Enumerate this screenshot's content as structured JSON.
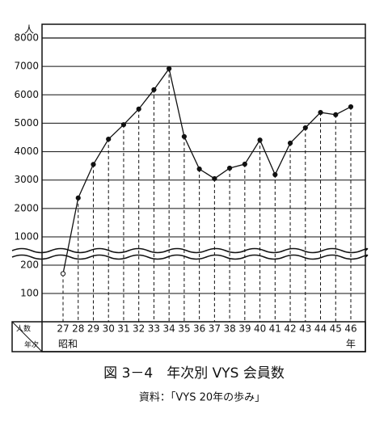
{
  "chart_data": {
    "type": "line",
    "title": "図 3－4　年次別 VYS 会員数",
    "source": "資料：「VYS 20年の歩み」",
    "y_unit": "人",
    "x_unit": "年",
    "x_era": "昭和",
    "corner_labels": [
      "人数",
      "年次"
    ],
    "categories": [
      "27",
      "28",
      "29",
      "30",
      "31",
      "32",
      "33",
      "34",
      "35",
      "36",
      "37",
      "38",
      "39",
      "40",
      "41",
      "42",
      "43",
      "44",
      "45",
      "46"
    ],
    "series": [
      {
        "color": "#111111",
        "values": [
          170,
          2370,
          3550,
          4440,
          4950,
          5500,
          6180,
          6920,
          4530,
          3390,
          3050,
          3420,
          3560,
          4410,
          3190,
          4300,
          4840,
          5380,
          5300,
          5580
        ]
      }
    ],
    "y_segments": [
      {
        "ylim": [
          0,
          200
        ],
        "yticks": [
          100,
          200
        ]
      },
      {
        "ylim": [
          1000,
          8000
        ],
        "yticks": [
          1000,
          2000,
          3000,
          4000,
          5000,
          6000,
          7000,
          8000
        ]
      }
    ],
    "grid": true
  }
}
